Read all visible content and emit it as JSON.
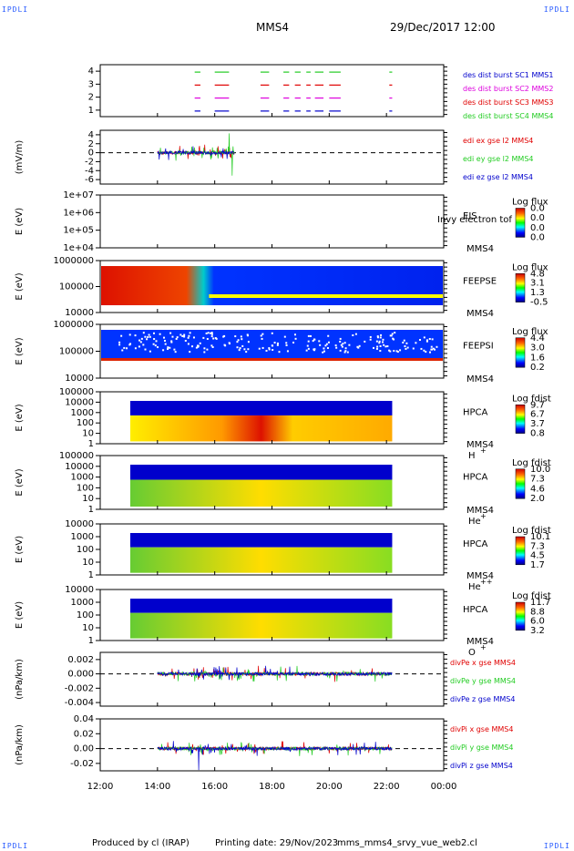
{
  "corner_label": "IPDLI",
  "header": {
    "spacecraft": "MMS4",
    "datetime": "29/Dec/2017 12:00"
  },
  "footer": {
    "produced_by": "Produced by cl (IRAP)",
    "printing_date": "Printing date: 29/Nov/2023",
    "filename": "mms_mms4_srvy_vue_web2.cl"
  },
  "colors": {
    "red": "#e00000",
    "green": "#22cc22",
    "blue": "#0000cc",
    "magenta": "#dd00dd"
  },
  "chart_data": [
    {
      "type": "line",
      "id": "burst",
      "ylim": [
        0.5,
        4.5
      ],
      "yticks": [
        "1",
        "2",
        "3",
        "4"
      ],
      "legend": [
        {
          "name": "des dist burst SC1 MMS1",
          "color": "#0000cc"
        },
        {
          "name": "des dist burst SC2 MMS2",
          "color": "#dd00dd"
        },
        {
          "name": "des dist burst SC3 MMS3",
          "color": "#e00000"
        },
        {
          "name": "des dist burst SC4 MMS4",
          "color": "#22cc22"
        }
      ],
      "intervals_hours": [
        [
          15.3,
          15.5
        ],
        [
          16.0,
          16.5
        ],
        [
          17.6,
          17.9
        ],
        [
          18.4,
          18.6
        ],
        [
          18.8,
          19.0
        ],
        [
          19.2,
          19.35
        ],
        [
          19.5,
          19.8
        ],
        [
          20.0,
          20.4
        ],
        [
          22.1,
          22.2
        ]
      ]
    },
    {
      "type": "line",
      "id": "edi",
      "ylabel": "(mV/m)",
      "ylim": [
        -7,
        5
      ],
      "yticks": [
        "-6",
        "-4",
        "-2",
        "0",
        "2",
        "4"
      ],
      "legend": [
        {
          "name": "edi ex gse l2 MMS4",
          "color": "#e00000"
        },
        {
          "name": "edi ey gse l2 MMS4",
          "color": "#22cc22"
        },
        {
          "name": "edi ez gse l2 MMS4",
          "color": "#0000cc"
        }
      ],
      "active_hours": [
        14.0,
        16.7
      ]
    },
    {
      "type": "heatmap",
      "id": "eis",
      "ylabel": "E (eV)",
      "yticks": [
        "1e+04",
        "1e+05",
        "1e+06",
        "1e+07"
      ],
      "instrument": "EIS",
      "sublabel": "MMS4",
      "overlay": "Invy electron tof",
      "colorbar": {
        "title": "Log flux",
        "ticks": [
          "0.0",
          "0.0",
          "0.0",
          "0.0"
        ]
      }
    },
    {
      "type": "heatmap",
      "id": "feepse",
      "ylabel": "E (eV)",
      "yticks": [
        "10000",
        "100000",
        "1000000"
      ],
      "instrument": "FEEPSE",
      "sublabel": "MMS4",
      "colorbar": {
        "title": "Log flux",
        "ticks": [
          "4.8",
          "3.1",
          "1.3",
          "-0.5"
        ]
      }
    },
    {
      "type": "heatmap",
      "id": "feepsi",
      "ylabel": "E (eV)",
      "yticks": [
        "10000",
        "100000",
        "1000000"
      ],
      "instrument": "FEEPSI",
      "sublabel": "MMS4",
      "colorbar": {
        "title": "Log flux",
        "ticks": [
          "4.4",
          "3.0",
          "1.6",
          "0.2"
        ]
      }
    },
    {
      "type": "heatmap",
      "id": "hpca_h",
      "ylabel": "E (eV)",
      "yticks": [
        "1",
        "10",
        "100",
        "1000",
        "10000",
        "100000"
      ],
      "instrument": "HPCA",
      "sublabel": "MMS4",
      "species": "H",
      "charge": "+",
      "colorbar": {
        "title": "Log fdist",
        "ticks": [
          "9.7",
          "6.7",
          "3.7",
          "0.8"
        ]
      }
    },
    {
      "type": "heatmap",
      "id": "hpca_he",
      "ylabel": "E (eV)",
      "yticks": [
        "1",
        "10",
        "100",
        "1000",
        "10000",
        "100000"
      ],
      "instrument": "HPCA",
      "sublabel": "MMS4",
      "species": "He",
      "charge": "+",
      "colorbar": {
        "title": "Log fdist",
        "ticks": [
          "10.0",
          "7.3",
          "4.6",
          "2.0"
        ]
      }
    },
    {
      "type": "heatmap",
      "id": "hpca_hepp",
      "ylabel": "E (eV)",
      "yticks": [
        "1",
        "10",
        "100",
        "1000",
        "10000"
      ],
      "instrument": "HPCA",
      "sublabel": "MMS4",
      "species": "He",
      "charge": "++",
      "colorbar": {
        "title": "Log fdist",
        "ticks": [
          "10.1",
          "7.3",
          "4.5",
          "1.7"
        ]
      }
    },
    {
      "type": "heatmap",
      "id": "hpca_o",
      "ylabel": "E (eV)",
      "yticks": [
        "1",
        "10",
        "100",
        "1000",
        "10000"
      ],
      "instrument": "HPCA",
      "sublabel": "MMS4",
      "species": "O",
      "charge": "+",
      "colorbar": {
        "title": "Log fdist",
        "ticks": [
          "11.7",
          "8.8",
          "6.0",
          "3.2"
        ]
      }
    },
    {
      "type": "line",
      "id": "divpe",
      "ylabel": "(nPa/km)",
      "ylim": [
        -0.0045,
        0.003
      ],
      "yticks": [
        "-0.004",
        "-0.002",
        "0.000",
        "0.002"
      ],
      "legend": [
        {
          "name": "divPe x gse MMS4",
          "color": "#e00000"
        },
        {
          "name": "divPe y gse MMS4",
          "color": "#22cc22"
        },
        {
          "name": "divPe z gse MMS4",
          "color": "#0000cc"
        }
      ],
      "active_hours": [
        14.0,
        22.2
      ]
    },
    {
      "type": "line",
      "id": "divpi",
      "ylabel": "(nPa/km)",
      "ylim": [
        -0.03,
        0.04
      ],
      "yticks": [
        "-0.02",
        "0.00",
        "0.02",
        "0.04"
      ],
      "legend": [
        {
          "name": "divPi x gse MMS4",
          "color": "#e00000"
        },
        {
          "name": "divPi y gse MMS4",
          "color": "#22cc22"
        },
        {
          "name": "divPi z gse MMS4",
          "color": "#0000cc"
        }
      ],
      "active_hours": [
        14.0,
        22.2
      ]
    }
  ],
  "x_axis": {
    "ticks": [
      "12:00",
      "14:00",
      "16:00",
      "18:00",
      "20:00",
      "22:00",
      "00:00"
    ],
    "xlim_hours": [
      12,
      24
    ]
  }
}
